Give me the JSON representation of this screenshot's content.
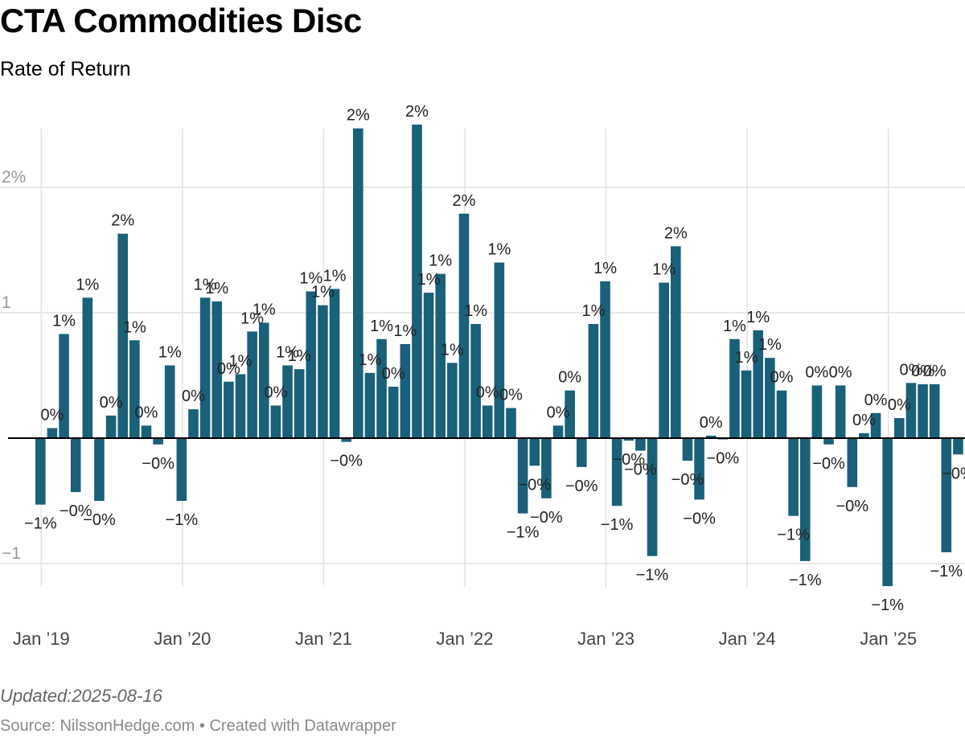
{
  "header": {
    "title": "CTA Commodities Disc",
    "subtitle": "Rate of Return"
  },
  "notes": {
    "updated": "Updated:2025-08-16",
    "source": "Source: NilssonHedge.com",
    "separator": "•",
    "created_with": "Created with Datawrapper"
  },
  "colors": {
    "bar": "#1a6079",
    "grid": "#e2e2e2",
    "zero_line": "#000000"
  },
  "chart_data": {
    "type": "bar",
    "title": "CTA Commodities Disc",
    "subtitle": "Rate of Return",
    "start_month": "2019-01",
    "end_month": "2025-07",
    "ylim": [
      -1.2,
      2.5
    ],
    "y_ticks": [
      {
        "value": 2,
        "label": "2%"
      },
      {
        "value": 1,
        "label": "1"
      },
      {
        "value": -1,
        "label": "−1"
      }
    ],
    "x_ticks": [
      "Jan ’19",
      "Jan ’20",
      "Jan ’21",
      "Jan ’22",
      "Jan ’23",
      "Jan ’24",
      "Jan ’25"
    ],
    "grid": true,
    "values": [
      -0.53,
      0.08,
      0.83,
      -0.43,
      1.12,
      -0.5,
      0.18,
      1.63,
      0.78,
      0.1,
      -0.05,
      0.58,
      -0.5,
      0.23,
      1.12,
      1.09,
      0.45,
      0.51,
      0.85,
      0.92,
      0.26,
      0.58,
      0.55,
      1.17,
      1.06,
      1.19,
      -0.03,
      2.47,
      0.52,
      0.79,
      0.41,
      0.75,
      2.5,
      1.16,
      1.31,
      0.6,
      1.79,
      0.91,
      0.26,
      1.4,
      0.24,
      -0.6,
      -0.22,
      -0.48,
      0.1,
      0.38,
      -0.23,
      0.91,
      1.25,
      -0.54,
      -0.02,
      -0.1,
      -0.94,
      1.24,
      1.53,
      -0.18,
      -0.49,
      0.02,
      -0.01,
      0.79,
      0.54,
      0.86,
      0.64,
      0.38,
      -0.62,
      -0.98,
      0.42,
      -0.05,
      0.42,
      -0.39,
      0.04,
      0.2,
      -1.18,
      0.16,
      0.44,
      0.43,
      0.43,
      -0.91,
      -0.13
    ],
    "data_labels": [
      "−1%",
      "0%",
      "1%",
      "−0%",
      "1%",
      "−0%",
      "0%",
      "2%",
      "1%",
      "0%",
      "−0%",
      "1%",
      "−1%",
      "0%",
      "1%",
      "1%",
      "0%",
      "1%",
      "1%",
      "1%",
      "0%",
      "1%",
      "1%",
      "1%",
      "1%",
      "1%",
      "−0%",
      "2%",
      "1%",
      "1%",
      "0%",
      "1%",
      "2%",
      "1%",
      "1%",
      "1%",
      "2%",
      "1%",
      "0%",
      "1%",
      "0%",
      "−1%",
      "−0%",
      "−0%",
      "0%",
      "0%",
      "−0%",
      "1%",
      "1%",
      "−1%",
      "−0%",
      "−0%",
      "−1%",
      "1%",
      "2%",
      "−0%",
      "−0%",
      "0%",
      "−0%",
      "1%",
      "1%",
      "1%",
      "1%",
      "0%",
      "−1%",
      "−1%",
      "0%",
      "−0%",
      "0%",
      "−0%",
      "0%",
      "0%",
      "−1%",
      "0%",
      "0%",
      "0%",
      "0%",
      "−1%",
      "−0%"
    ]
  }
}
